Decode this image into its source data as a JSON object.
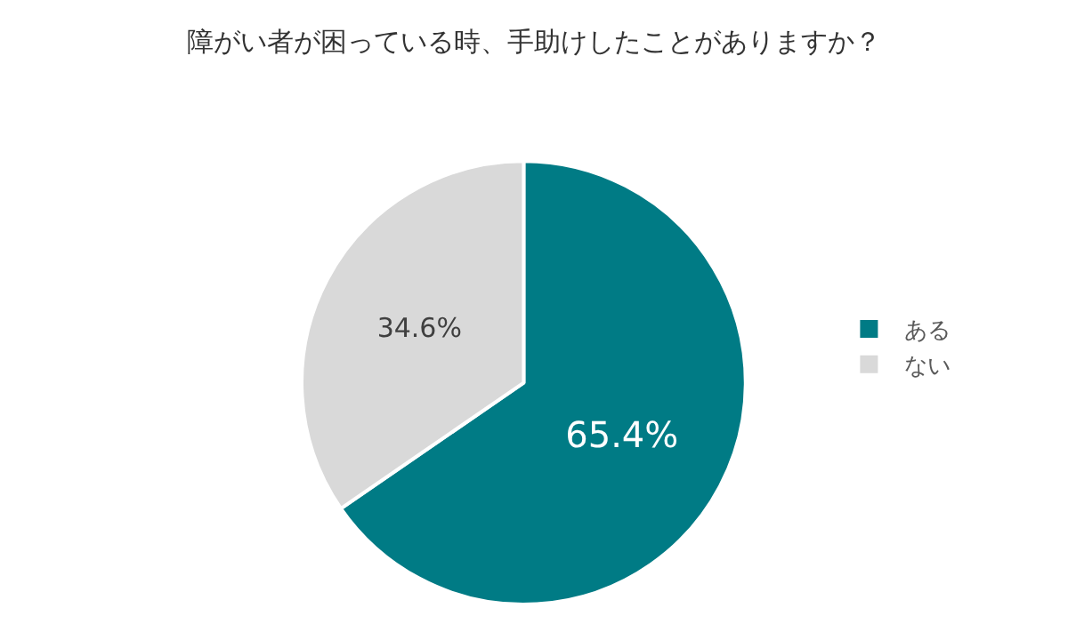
{
  "chart_data": {
    "type": "pie",
    "title": "障がい者が困っている時、手助けしたことがありますか？",
    "categories": [
      "ある",
      "ない"
    ],
    "values": [
      65.4,
      34.6
    ],
    "colors": [
      "#007b85",
      "#d9d9d9"
    ],
    "value_labels": [
      "65.4%",
      "34.6%"
    ],
    "legend": "right"
  }
}
